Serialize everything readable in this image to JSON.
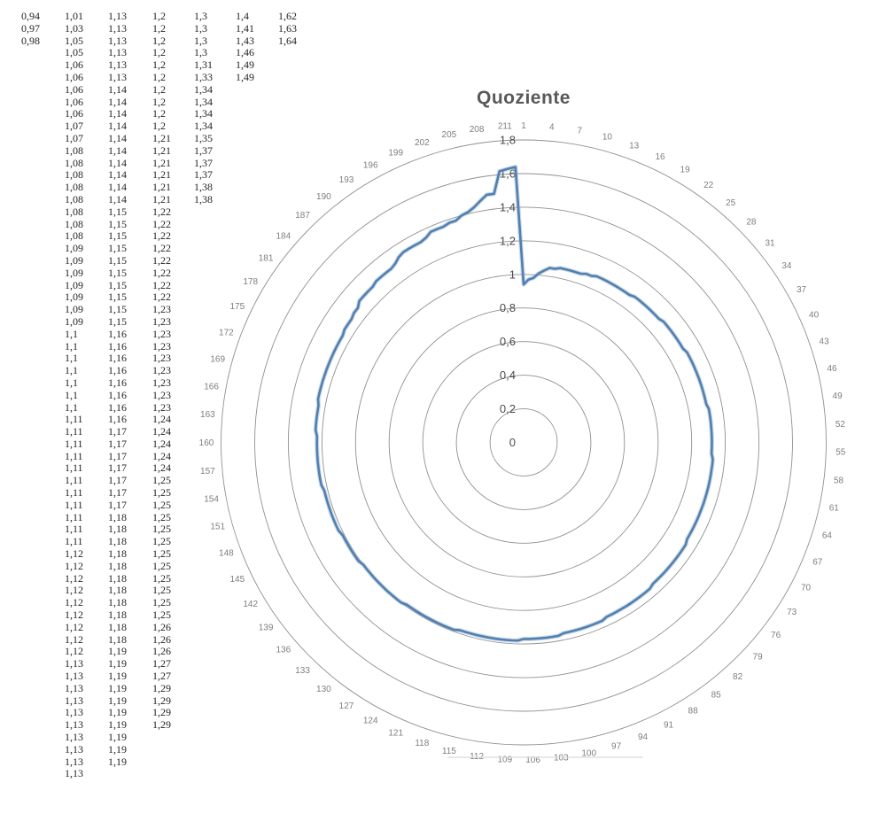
{
  "chart_data": {
    "type": "line",
    "subtype": "radar-spiral",
    "title": "Quoziente",
    "n_categories": 212,
    "category_label_step": 3,
    "category_labels": [
      "1",
      "4",
      "7",
      "10",
      "13",
      "16",
      "19",
      "22",
      "25",
      "28",
      "31",
      "34",
      "37",
      "40",
      "43",
      "46",
      "49",
      "52",
      "55",
      "58",
      "61",
      "64",
      "67",
      "70",
      "73",
      "76",
      "79",
      "82",
      "85",
      "88",
      "91",
      "94",
      "97",
      "100",
      "103",
      "106",
      "109",
      "112",
      "115",
      "118",
      "121",
      "124",
      "127",
      "130",
      "133",
      "136",
      "139",
      "142",
      "145",
      "148",
      "151",
      "154",
      "157",
      "160",
      "163",
      "166",
      "169",
      "172",
      "175",
      "178",
      "181",
      "184",
      "187",
      "190",
      "193",
      "196",
      "199",
      "202",
      "205",
      "208",
      "211"
    ],
    "axis_tick_labels": [
      "0",
      "0,2",
      "0,4",
      "0,6",
      "0,8",
      "1",
      "1,2",
      "1,4",
      "1,6",
      "1,8"
    ],
    "axis_tick_values": [
      0,
      0.2,
      0.4,
      0.6,
      0.8,
      1,
      1.2,
      1.4,
      1.6,
      1.8
    ],
    "rlim": [
      0,
      1.8
    ],
    "grid": true,
    "legend": "none",
    "series": [
      {
        "name": "Quoziente",
        "values": [
          0.94,
          0.97,
          0.98,
          1.01,
          1.03,
          1.05,
          1.05,
          1.06,
          1.06,
          1.06,
          1.06,
          1.06,
          1.07,
          1.07,
          1.08,
          1.08,
          1.08,
          1.08,
          1.08,
          1.08,
          1.08,
          1.08,
          1.09,
          1.09,
          1.09,
          1.09,
          1.09,
          1.09,
          1.09,
          1.1,
          1.1,
          1.1,
          1.1,
          1.1,
          1.1,
          1.1,
          1.11,
          1.11,
          1.11,
          1.11,
          1.11,
          1.11,
          1.11,
          1.11,
          1.11,
          1.11,
          1.11,
          1.12,
          1.12,
          1.12,
          1.12,
          1.12,
          1.12,
          1.12,
          1.12,
          1.12,
          1.13,
          1.13,
          1.13,
          1.13,
          1.13,
          1.13,
          1.13,
          1.13,
          1.13,
          1.13,
          1.13,
          1.13,
          1.13,
          1.13,
          1.13,
          1.13,
          1.14,
          1.14,
          1.14,
          1.14,
          1.14,
          1.14,
          1.14,
          1.14,
          1.14,
          1.14,
          1.15,
          1.15,
          1.15,
          1.15,
          1.15,
          1.15,
          1.15,
          1.15,
          1.15,
          1.15,
          1.16,
          1.16,
          1.16,
          1.16,
          1.16,
          1.16,
          1.16,
          1.16,
          1.17,
          1.17,
          1.17,
          1.17,
          1.17,
          1.17,
          1.17,
          1.18,
          1.18,
          1.18,
          1.18,
          1.18,
          1.18,
          1.18,
          1.18,
          1.18,
          1.18,
          1.18,
          1.19,
          1.19,
          1.19,
          1.19,
          1.19,
          1.19,
          1.19,
          1.19,
          1.19,
          1.19,
          1.2,
          1.2,
          1.2,
          1.2,
          1.2,
          1.2,
          1.2,
          1.2,
          1.2,
          1.2,
          1.21,
          1.21,
          1.21,
          1.21,
          1.21,
          1.21,
          1.22,
          1.22,
          1.22,
          1.22,
          1.22,
          1.22,
          1.22,
          1.22,
          1.23,
          1.23,
          1.23,
          1.23,
          1.23,
          1.23,
          1.23,
          1.23,
          1.23,
          1.24,
          1.24,
          1.24,
          1.24,
          1.24,
          1.25,
          1.25,
          1.25,
          1.25,
          1.25,
          1.25,
          1.25,
          1.25,
          1.25,
          1.25,
          1.25,
          1.25,
          1.26,
          1.26,
          1.26,
          1.27,
          1.27,
          1.29,
          1.29,
          1.29,
          1.29,
          1.3,
          1.3,
          1.3,
          1.3,
          1.31,
          1.33,
          1.34,
          1.34,
          1.34,
          1.34,
          1.35,
          1.37,
          1.37,
          1.37,
          1.38,
          1.38,
          1.4,
          1.41,
          1.43,
          1.46,
          1.49,
          1.49,
          1.62,
          1.63,
          1.64
        ]
      }
    ]
  },
  "table": {
    "columns": [
      [
        "0,94",
        "0,97",
        "0,98"
      ],
      [
        "1,01",
        "1,03",
        "1,05",
        "1,05",
        "1,06",
        "1,06",
        "1,06",
        "1,06",
        "1,06",
        "1,07",
        "1,07",
        "1,08",
        "1,08",
        "1,08",
        "1,08",
        "1,08",
        "1,08",
        "1,08",
        "1,08",
        "1,09",
        "1,09",
        "1,09",
        "1,09",
        "1,09",
        "1,09",
        "1,09",
        "1,1",
        "1,1",
        "1,1",
        "1,1",
        "1,1",
        "1,1",
        "1,1",
        "1,11",
        "1,11",
        "1,11",
        "1,11",
        "1,11",
        "1,11",
        "1,11",
        "1,11",
        "1,11",
        "1,11",
        "1,11",
        "1,12",
        "1,12",
        "1,12",
        "1,12",
        "1,12",
        "1,12",
        "1,12",
        "1,12",
        "1,12",
        "1,13",
        "1,13",
        "1,13",
        "1,13",
        "1,13",
        "1,13",
        "1,13",
        "1,13",
        "1,13",
        "1,13"
      ],
      [
        "1,13",
        "1,13",
        "1,13",
        "1,13",
        "1,13",
        "1,13",
        "1,14",
        "1,14",
        "1,14",
        "1,14",
        "1,14",
        "1,14",
        "1,14",
        "1,14",
        "1,14",
        "1,14",
        "1,15",
        "1,15",
        "1,15",
        "1,15",
        "1,15",
        "1,15",
        "1,15",
        "1,15",
        "1,15",
        "1,15",
        "1,16",
        "1,16",
        "1,16",
        "1,16",
        "1,16",
        "1,16",
        "1,16",
        "1,16",
        "1,17",
        "1,17",
        "1,17",
        "1,17",
        "1,17",
        "1,17",
        "1,17",
        "1,18",
        "1,18",
        "1,18",
        "1,18",
        "1,18",
        "1,18",
        "1,18",
        "1,18",
        "1,18",
        "1,18",
        "1,18",
        "1,19",
        "1,19",
        "1,19",
        "1,19",
        "1,19",
        "1,19",
        "1,19",
        "1,19",
        "1,19",
        "1,19"
      ],
      [
        "1,2",
        "1,2",
        "1,2",
        "1,2",
        "1,2",
        "1,2",
        "1,2",
        "1,2",
        "1,2",
        "1,2",
        "1,21",
        "1,21",
        "1,21",
        "1,21",
        "1,21",
        "1,21",
        "1,22",
        "1,22",
        "1,22",
        "1,22",
        "1,22",
        "1,22",
        "1,22",
        "1,22",
        "1,23",
        "1,23",
        "1,23",
        "1,23",
        "1,23",
        "1,23",
        "1,23",
        "1,23",
        "1,23",
        "1,24",
        "1,24",
        "1,24",
        "1,24",
        "1,24",
        "1,25",
        "1,25",
        "1,25",
        "1,25",
        "1,25",
        "1,25",
        "1,25",
        "1,25",
        "1,25",
        "1,25",
        "1,25",
        "1,25",
        "1,26",
        "1,26",
        "1,26",
        "1,27",
        "1,27",
        "1,29",
        "1,29",
        "1,29",
        "1,29"
      ],
      [
        "1,3",
        "1,3",
        "1,3",
        "1,3",
        "1,31",
        "1,33",
        "1,34",
        "1,34",
        "1,34",
        "1,34",
        "1,35",
        "1,37",
        "1,37",
        "1,37",
        "1,38",
        "1,38"
      ],
      [
        "1,4",
        "1,41",
        "1,43",
        "1,46",
        "1,49",
        "1,49"
      ],
      [
        "1,62",
        "1,63",
        "1,64"
      ]
    ]
  },
  "colors": {
    "line": "#527fae",
    "line_halo": "#8fb0d1",
    "ring": "#848484",
    "title": "#595959",
    "category_label": "#7e7e7e",
    "axis_label": "#4c4c4c",
    "table_text": "#242424",
    "divider": "#d9d9d9"
  }
}
